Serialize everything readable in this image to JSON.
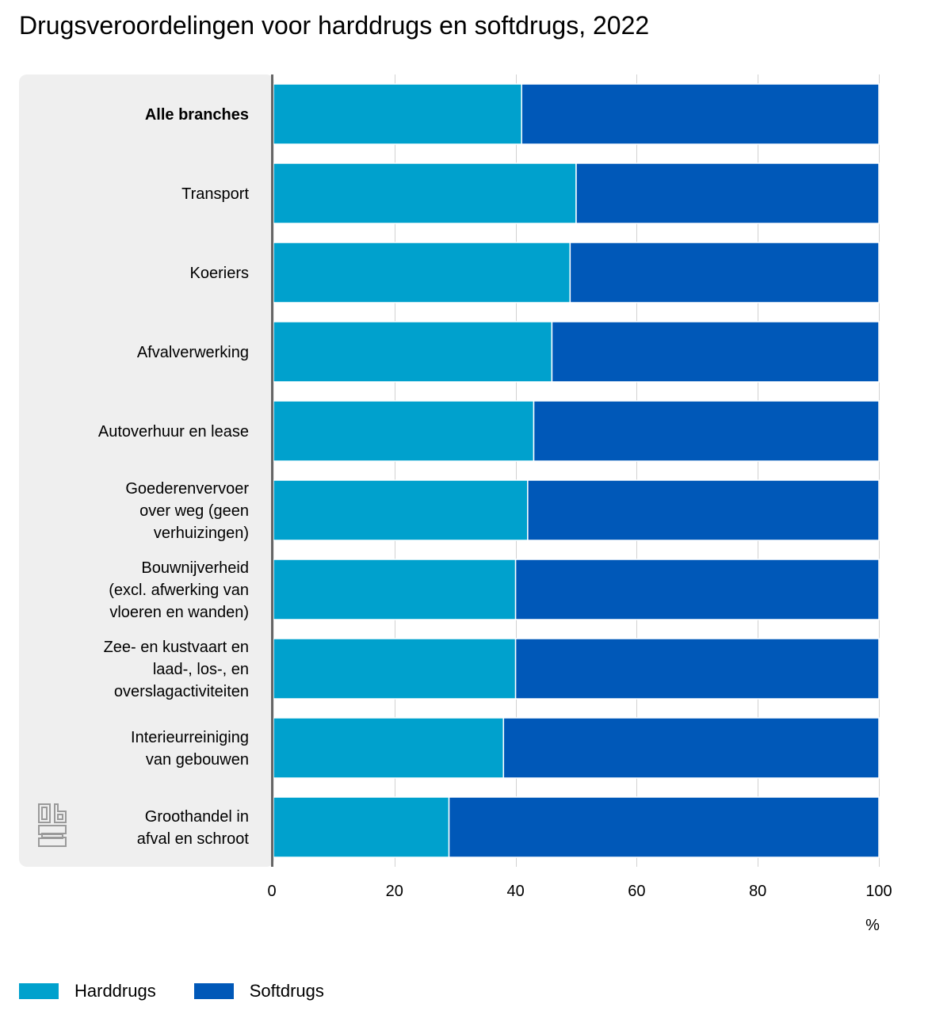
{
  "chart_data": {
    "type": "bar",
    "orientation": "horizontal",
    "stacked": true,
    "title": "Drugsveroordelingen voor harddrugs en softdrugs, 2022",
    "xlabel": "%",
    "ylabel": "",
    "xlim": [
      0,
      100
    ],
    "x_ticks": [
      "0",
      "20",
      "40",
      "60",
      "80",
      "100"
    ],
    "grid": true,
    "legend_position": "bottom-left",
    "categories": [
      [
        "Alle branches"
      ],
      [
        "Transport"
      ],
      [
        "Koeriers"
      ],
      [
        "Afvalverwerking"
      ],
      [
        "Autoverhuur en lease"
      ],
      [
        "Goederenvervoer",
        "over weg (geen",
        "verhuizingen)"
      ],
      [
        "Bouwnijverheid",
        "(excl. afwerking van",
        "vloeren en wanden)"
      ],
      [
        "Zee- en kustvaart en",
        "laad-, los-, en",
        "overslagactiviteiten"
      ],
      [
        "Interieurreiniging",
        "van gebouwen"
      ],
      [
        "Groothandel in",
        "afval en schroot"
      ]
    ],
    "highlight_category": 0,
    "series": [
      {
        "name": "Harddrugs",
        "color": "#00a1cd",
        "values": [
          41,
          50,
          49,
          46,
          43,
          42,
          40,
          40,
          38,
          29
        ]
      },
      {
        "name": "Softdrugs",
        "color": "#0058b8",
        "values": [
          59,
          50,
          51,
          54,
          57,
          58,
          60,
          60,
          62,
          71
        ]
      }
    ]
  },
  "logo": {
    "name": "cbs-logo-icon"
  }
}
